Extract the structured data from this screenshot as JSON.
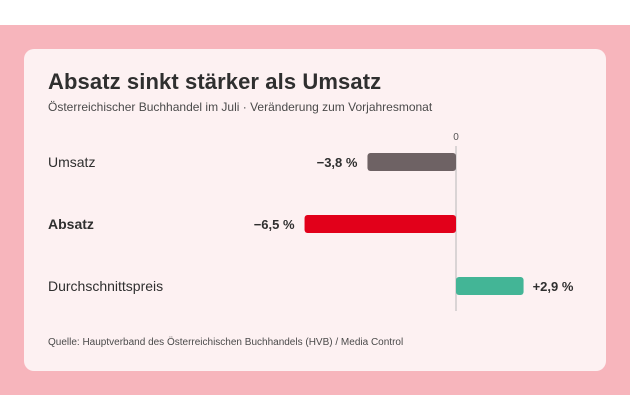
{
  "header": {
    "title": "Absatz sinkt stärker als Umsatz",
    "subtitle": "Österreichischer Buchhandel im Juli · Veränderung zum Vorjahresmonat"
  },
  "footer": {
    "source": "Quelle: Hauptverband des Österreichischen Buchhandels (HVB) / Media Control"
  },
  "colors": {
    "band": "#f7b5bc",
    "card": "#fdf1f2"
  },
  "chart_data": {
    "type": "bar",
    "orientation": "horizontal",
    "categories": [
      "Umsatz",
      "Absatz",
      "Durchschnittspreis"
    ],
    "values": [
      -3.8,
      -6.5,
      2.9
    ],
    "value_labels": [
      "−3,8 %",
      "−6,5 %",
      "+2,9 %"
    ],
    "colors": [
      "#6e6264",
      "#e2001a",
      "#43b596"
    ],
    "emphasis": [
      false,
      true,
      false
    ],
    "zero_label": "0",
    "title": "Absatz sinkt stärker als Umsatz",
    "subtitle": "Österreichischer Buchhandel im Juli · Veränderung zum Vorjahresmonat",
    "xlim": [
      -6.5,
      2.9
    ],
    "grid": false,
    "legend": "none"
  }
}
